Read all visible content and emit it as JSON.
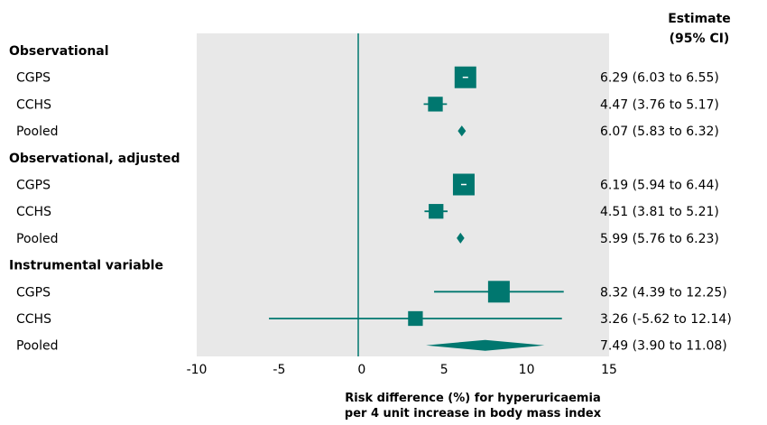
{
  "chart_data": {
    "type": "forest",
    "title": "",
    "header": [
      "Estimate",
      "(95% CI)"
    ],
    "xlabel": [
      "Risk difference (%) for hyperuricaemia",
      "per 4 unit increase in body mass index"
    ],
    "xlim": [
      -10,
      15
    ],
    "xticks": [
      "-10",
      "-5",
      "0",
      "5",
      "10",
      "15"
    ],
    "reference_line": 0,
    "colors": {
      "marker": "#00776f",
      "panel": "#e8e8e8"
    },
    "groups": [
      {
        "name": "Observational",
        "rows": [
          {
            "label": "CGPS",
            "estimate": 6.29,
            "lower": 6.03,
            "upper": 6.55,
            "weight": 1.0,
            "pooled": false,
            "text": "6.29 (6.03 to 6.55)"
          },
          {
            "label": "CCHS",
            "estimate": 4.47,
            "lower": 3.76,
            "upper": 5.17,
            "weight": 0.45,
            "pooled": false,
            "text": "4.47 (3.76 to 5.17)"
          },
          {
            "label": "Pooled",
            "estimate": 6.07,
            "lower": 5.83,
            "upper": 6.32,
            "weight": 0,
            "pooled": true,
            "text": "6.07 (5.83 to 6.32)"
          }
        ]
      },
      {
        "name": "Observational, adjusted",
        "rows": [
          {
            "label": "CGPS",
            "estimate": 6.19,
            "lower": 5.94,
            "upper": 6.44,
            "weight": 1.0,
            "pooled": false,
            "text": "6.19 (5.94 to 6.44)"
          },
          {
            "label": "CCHS",
            "estimate": 4.51,
            "lower": 3.81,
            "upper": 5.21,
            "weight": 0.45,
            "pooled": false,
            "text": "4.51 (3.81 to 5.21)"
          },
          {
            "label": "Pooled",
            "estimate": 5.99,
            "lower": 5.76,
            "upper": 6.23,
            "weight": 0,
            "pooled": true,
            "text": "5.99 (5.76 to 6.23)"
          }
        ]
      },
      {
        "name": "Instrumental variable",
        "rows": [
          {
            "label": "CGPS",
            "estimate": 8.32,
            "lower": 4.39,
            "upper": 12.25,
            "weight": 1.0,
            "pooled": false,
            "text": "8.32 (4.39 to 12.25)"
          },
          {
            "label": "CCHS",
            "estimate": 3.26,
            "lower": -5.62,
            "upper": 12.14,
            "weight": 0.45,
            "pooled": false,
            "text": "3.26 (-5.62 to 12.14)"
          },
          {
            "label": "Pooled",
            "estimate": 7.49,
            "lower": 3.9,
            "upper": 11.08,
            "weight": 0,
            "pooled": true,
            "text": "7.49 (3.90 to 11.08)"
          }
        ]
      }
    ]
  }
}
